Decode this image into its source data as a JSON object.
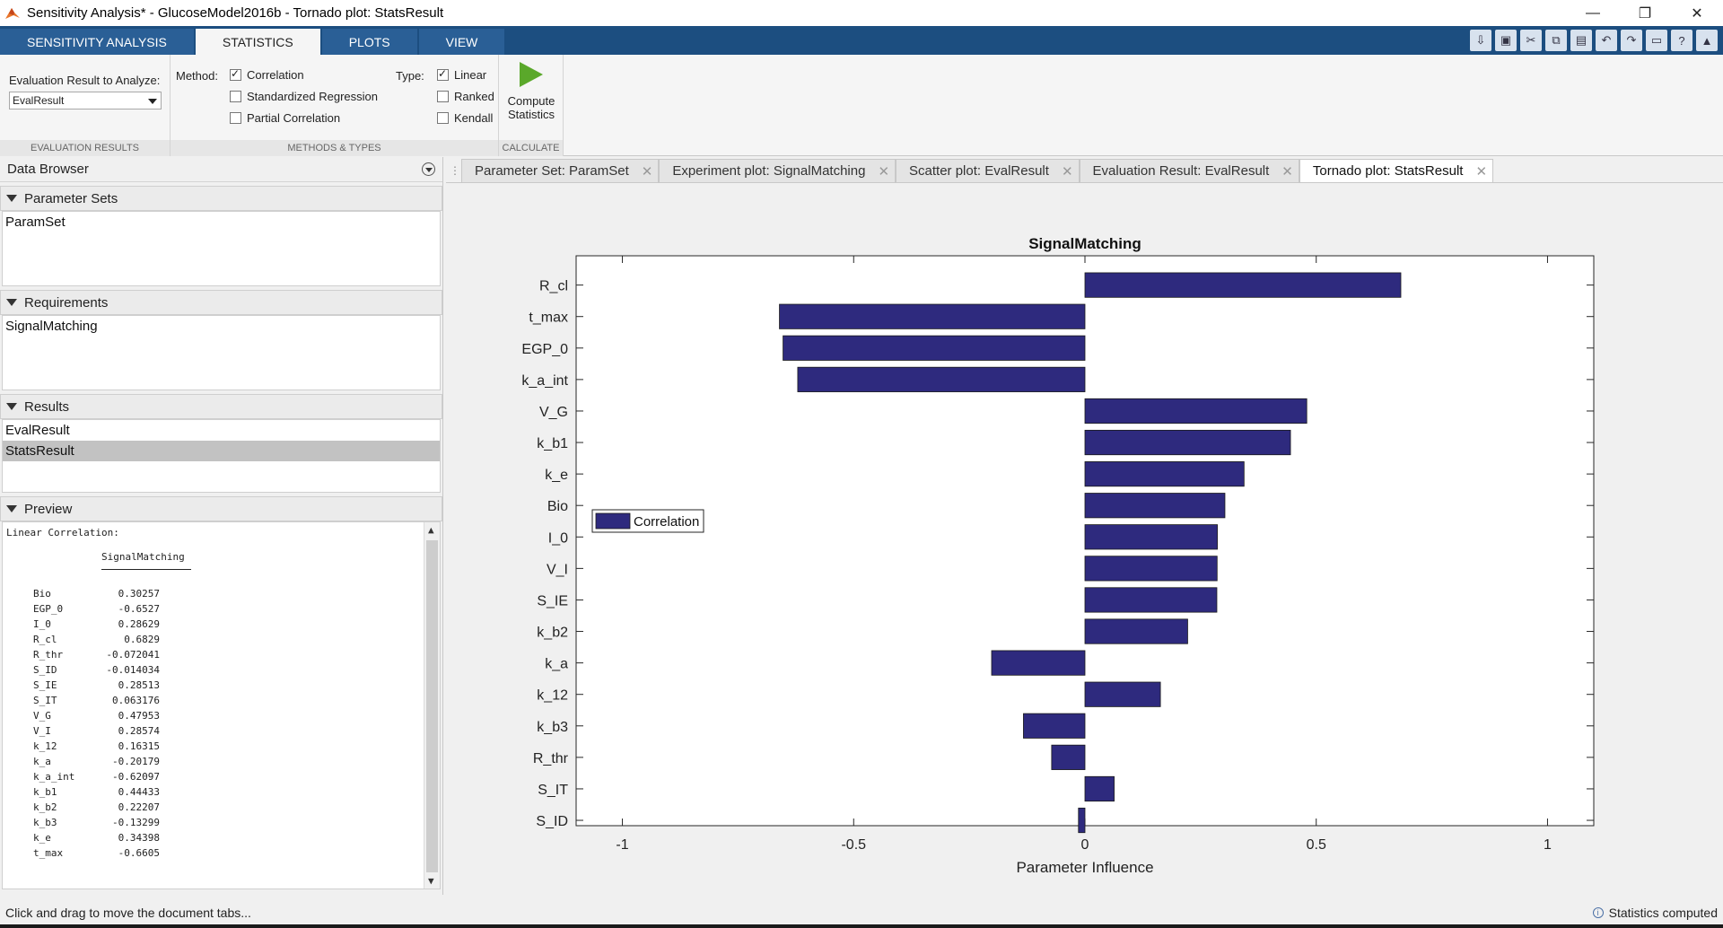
{
  "window": {
    "title": "Sensitivity Analysis* - GlucoseModel2016b - Tornado plot:  StatsResult",
    "minimize": "—",
    "restore": "❐",
    "close": "✕"
  },
  "ribbon": {
    "tabs": [
      {
        "label": "SENSITIVITY ANALYSIS"
      },
      {
        "label": "STATISTICS"
      },
      {
        "label": "PLOTS"
      },
      {
        "label": "VIEW"
      }
    ],
    "active_tab": "STATISTICS",
    "quick_access_icons": [
      "import-icon",
      "save-icon",
      "cut-icon",
      "copy-icon",
      "paste-icon",
      "undo-icon",
      "redo-icon",
      "layout-icon",
      "help-icon",
      "collapse-icon"
    ]
  },
  "toolstrip": {
    "eval_label": "Evaluation Result to Analyze:",
    "eval_value": "EvalResult",
    "method_label": "Method:",
    "methods": [
      {
        "label": "Correlation",
        "checked": true
      },
      {
        "label": "Standardized Regression",
        "checked": false
      },
      {
        "label": "Partial Correlation",
        "checked": false
      }
    ],
    "type_label": "Type:",
    "types": [
      {
        "label": "Linear",
        "checked": true
      },
      {
        "label": "Ranked",
        "checked": false
      },
      {
        "label": "Kendall",
        "checked": false
      }
    ],
    "compute_line1": "Compute",
    "compute_line2": "Statistics",
    "section_labels": {
      "eval": "EVALUATION RESULTS",
      "methods": "METHODS & TYPES",
      "calculate": "CALCULATE"
    }
  },
  "data_browser": {
    "title": "Data Browser",
    "parameter_sets": {
      "header": "Parameter Sets",
      "items": [
        "ParamSet"
      ]
    },
    "requirements": {
      "header": "Requirements",
      "items": [
        "SignalMatching"
      ]
    },
    "results": {
      "header": "Results",
      "items": [
        "EvalResult",
        "StatsResult"
      ],
      "selected": "StatsResult"
    },
    "preview": {
      "header": "Preview",
      "heading": "Linear Correlation:",
      "column": "SignalMatching",
      "rows": [
        {
          "name": "Bio",
          "value": "0.30257"
        },
        {
          "name": "EGP_0",
          "value": "-0.6527"
        },
        {
          "name": "I_0",
          "value": "0.28629"
        },
        {
          "name": "R_cl",
          "value": "0.6829"
        },
        {
          "name": "R_thr",
          "value": "-0.072041"
        },
        {
          "name": "S_ID",
          "value": "-0.014034"
        },
        {
          "name": "S_IE",
          "value": "0.28513"
        },
        {
          "name": "S_IT",
          "value": "0.063176"
        },
        {
          "name": "V_G",
          "value": "0.47953"
        },
        {
          "name": "V_I",
          "value": "0.28574"
        },
        {
          "name": "k_12",
          "value": "0.16315"
        },
        {
          "name": "k_a",
          "value": "-0.20179"
        },
        {
          "name": "k_a_int",
          "value": "-0.62097"
        },
        {
          "name": "k_b1",
          "value": "0.44433"
        },
        {
          "name": "k_b2",
          "value": "0.22207"
        },
        {
          "name": "k_b3",
          "value": "-0.13299"
        },
        {
          "name": "k_e",
          "value": "0.34398"
        },
        {
          "name": "t_max",
          "value": "-0.6605"
        }
      ]
    }
  },
  "document_tabs": [
    {
      "label": "Parameter Set:  ParamSet"
    },
    {
      "label": "Experiment plot: SignalMatching"
    },
    {
      "label": "Scatter plot:  EvalResult"
    },
    {
      "label": "Evaluation Result:  EvalResult"
    },
    {
      "label": "Tornado plot:  StatsResult"
    }
  ],
  "active_document": "Tornado plot:  StatsResult",
  "chart_data": {
    "type": "bar",
    "orientation": "horizontal",
    "title": "SignalMatching",
    "xlabel": "Parameter Influence",
    "ylabel": "",
    "xlim": [
      -1.1,
      1.1
    ],
    "xticks": [
      -1,
      -0.5,
      0,
      0.5,
      1
    ],
    "xtick_labels": [
      "-1",
      "-0.5",
      "0",
      "0.5",
      "1"
    ],
    "categories": [
      "R_cl",
      "t_max",
      "EGP_0",
      "k_a_int",
      "V_G",
      "k_b1",
      "k_e",
      "Bio",
      "I_0",
      "V_I",
      "S_IE",
      "k_b2",
      "k_a",
      "k_12",
      "k_b3",
      "R_thr",
      "S_IT",
      "S_ID"
    ],
    "series": [
      {
        "name": "Correlation",
        "values": [
          0.6829,
          -0.6605,
          -0.6527,
          -0.62097,
          0.47953,
          0.44433,
          0.34398,
          0.30257,
          0.28629,
          0.28574,
          0.28513,
          0.22207,
          -0.20179,
          0.16315,
          -0.13299,
          -0.072041,
          0.063176,
          -0.014034
        ]
      }
    ],
    "legend": {
      "position": "middle-left",
      "entries": [
        "Correlation"
      ]
    },
    "bar_color": "#2e2a7e",
    "grid": false
  },
  "status": {
    "left": "Click and drag to move the document tabs...",
    "right": "Statistics computed",
    "info_icon": "i"
  },
  "colors": {
    "ribbon_blue": "#1c4e80",
    "bar": "#2e2a7e",
    "compute_green": "#5aa82a"
  }
}
